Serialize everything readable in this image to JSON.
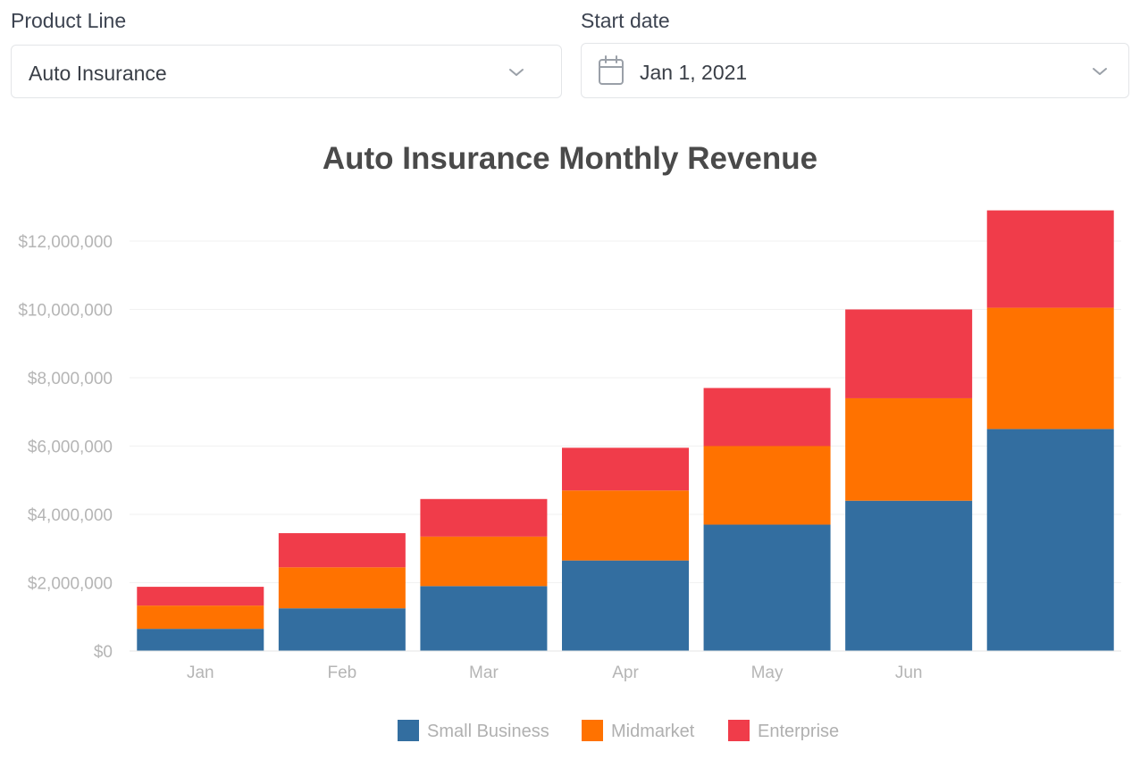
{
  "filters": {
    "product_line": {
      "label": "Product Line",
      "value": "Auto Insurance"
    },
    "start_date": {
      "label": "Start date",
      "value": "Jan 1, 2021"
    }
  },
  "icons": {
    "calendar": "calendar-icon",
    "chevron": "chevron-down-icon"
  },
  "colors": {
    "small_business": "#336ea0",
    "midmarket": "#ff7200",
    "enterprise": "#f03c4a",
    "grid": "#f1f1f1",
    "axis_text": "#b5b5b5"
  },
  "chart_data": {
    "type": "bar",
    "stacked": true,
    "title": "Auto Insurance Monthly Revenue",
    "xlabel": "",
    "ylabel": "",
    "categories": [
      "Jan",
      "Feb",
      "Mar",
      "Apr",
      "May",
      "Jun",
      ""
    ],
    "series": [
      {
        "name": "Small Business",
        "values": [
          650000,
          1250000,
          1900000,
          2650000,
          3700000,
          4400000,
          6500000
        ]
      },
      {
        "name": "Midmarket",
        "values": [
          680000,
          1200000,
          1450000,
          2050000,
          2300000,
          3000000,
          3550000
        ]
      },
      {
        "name": "Enterprise",
        "values": [
          550000,
          1000000,
          1100000,
          1250000,
          1700000,
          2600000,
          2850000
        ]
      }
    ],
    "ylim": [
      0,
      13000000
    ],
    "yticks": [
      0,
      2000000,
      4000000,
      6000000,
      8000000,
      10000000,
      12000000
    ],
    "ytick_labels": [
      "$0",
      "$2,000,000",
      "$4,000,000",
      "$6,000,000",
      "$8,000,000",
      "$10,000,000",
      "$12,000,000"
    ],
    "grid": true,
    "legend_position": "bottom-center"
  }
}
